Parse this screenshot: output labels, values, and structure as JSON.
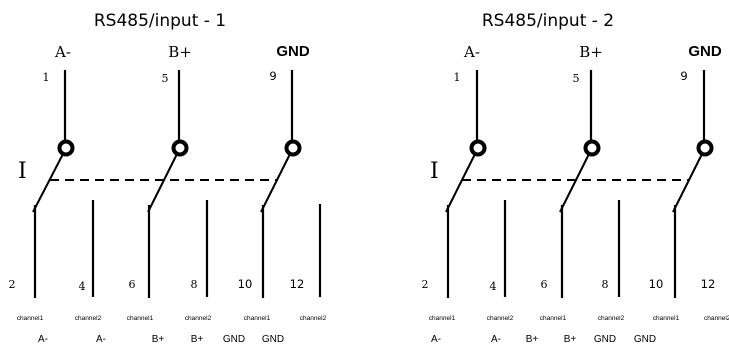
{
  "diagrams": [
    {
      "title": "RS485/input  - 1",
      "pins": [
        {
          "label": "A-",
          "number": "1"
        },
        {
          "label": "B+",
          "number": "5"
        },
        {
          "label": "GND",
          "number": "9"
        }
      ],
      "switch_label": "I",
      "outputs": [
        {
          "number": "2",
          "channel": "channel1",
          "signal": "A-"
        },
        {
          "number": "4",
          "channel": "channel2",
          "signal": "A-"
        },
        {
          "number": "6",
          "channel": "channel1",
          "signal": "B+"
        },
        {
          "number": "8",
          "channel": "channel2",
          "signal": "B+"
        },
        {
          "number": "10",
          "channel": "channel1",
          "signal": "GND"
        },
        {
          "number": "12",
          "channel": "channel2",
          "signal": "GND"
        }
      ]
    },
    {
      "title": "RS485/input  - 2",
      "pins": [
        {
          "label": "A-",
          "number": "1"
        },
        {
          "label": "B+",
          "number": "5"
        },
        {
          "label": "GND",
          "number": "9"
        }
      ],
      "switch_label": "I",
      "outputs": [
        {
          "number": "2",
          "channel": "channel1",
          "signal": "A-"
        },
        {
          "number": "4",
          "channel": "channel2",
          "signal": "A-"
        },
        {
          "number": "6",
          "channel": "channel1",
          "signal": "B+"
        },
        {
          "number": "8",
          "channel": "channel2",
          "signal": "B+"
        },
        {
          "number": "10",
          "channel": "channel1",
          "signal": "GND"
        },
        {
          "number": "12",
          "channel": "channel2",
          "signal": "GND"
        }
      ]
    }
  ]
}
